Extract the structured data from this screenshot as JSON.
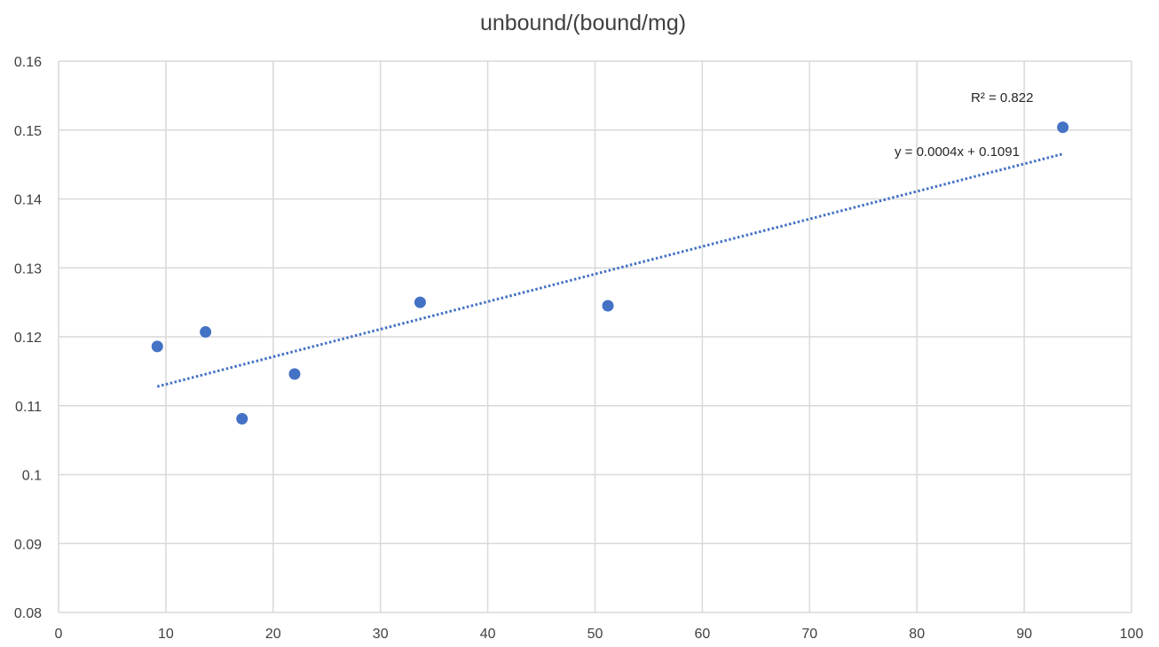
{
  "chart_data": {
    "type": "scatter",
    "title": "unbound/(bound/mg)",
    "xlabel": "",
    "ylabel": "",
    "xlim": [
      0,
      100
    ],
    "ylim": [
      0.08,
      0.16
    ],
    "x_ticks": [
      0,
      10,
      20,
      30,
      40,
      50,
      60,
      70,
      80,
      90,
      100
    ],
    "y_ticks": [
      0.08,
      0.09,
      0.1,
      0.11,
      0.12,
      0.13,
      0.14,
      0.15,
      0.16
    ],
    "x_tick_labels": [
      "0",
      "10",
      "20",
      "30",
      "40",
      "50",
      "60",
      "70",
      "80",
      "90",
      "100"
    ],
    "y_tick_labels": [
      "0.08",
      "0.09",
      "0.1",
      "0.11",
      "0.12",
      "0.13",
      "0.14",
      "0.15",
      "0.16"
    ],
    "grid": true,
    "series": [
      {
        "points": [
          {
            "x": 9.2,
            "y": 0.1186
          },
          {
            "x": 13.7,
            "y": 0.1207
          },
          {
            "x": 17.1,
            "y": 0.1081
          },
          {
            "x": 22.0,
            "y": 0.1146
          },
          {
            "x": 33.7,
            "y": 0.125
          },
          {
            "x": 51.2,
            "y": 0.1245
          },
          {
            "x": 93.6,
            "y": 0.1504
          }
        ],
        "color": "#4472C4"
      }
    ],
    "trendline": {
      "type": "linear",
      "slope": 0.0004,
      "intercept": 0.1091,
      "x_range": [
        9.2,
        93.6
      ],
      "color": "#4472C4",
      "style": "dotted",
      "equation_label": "y = 0.0004x + 0.1091",
      "r_squared_label": "R² = 0.822"
    },
    "colors": {
      "grid": "#d9d9d9",
      "text": "#404040",
      "marker": "#4472C4"
    }
  }
}
